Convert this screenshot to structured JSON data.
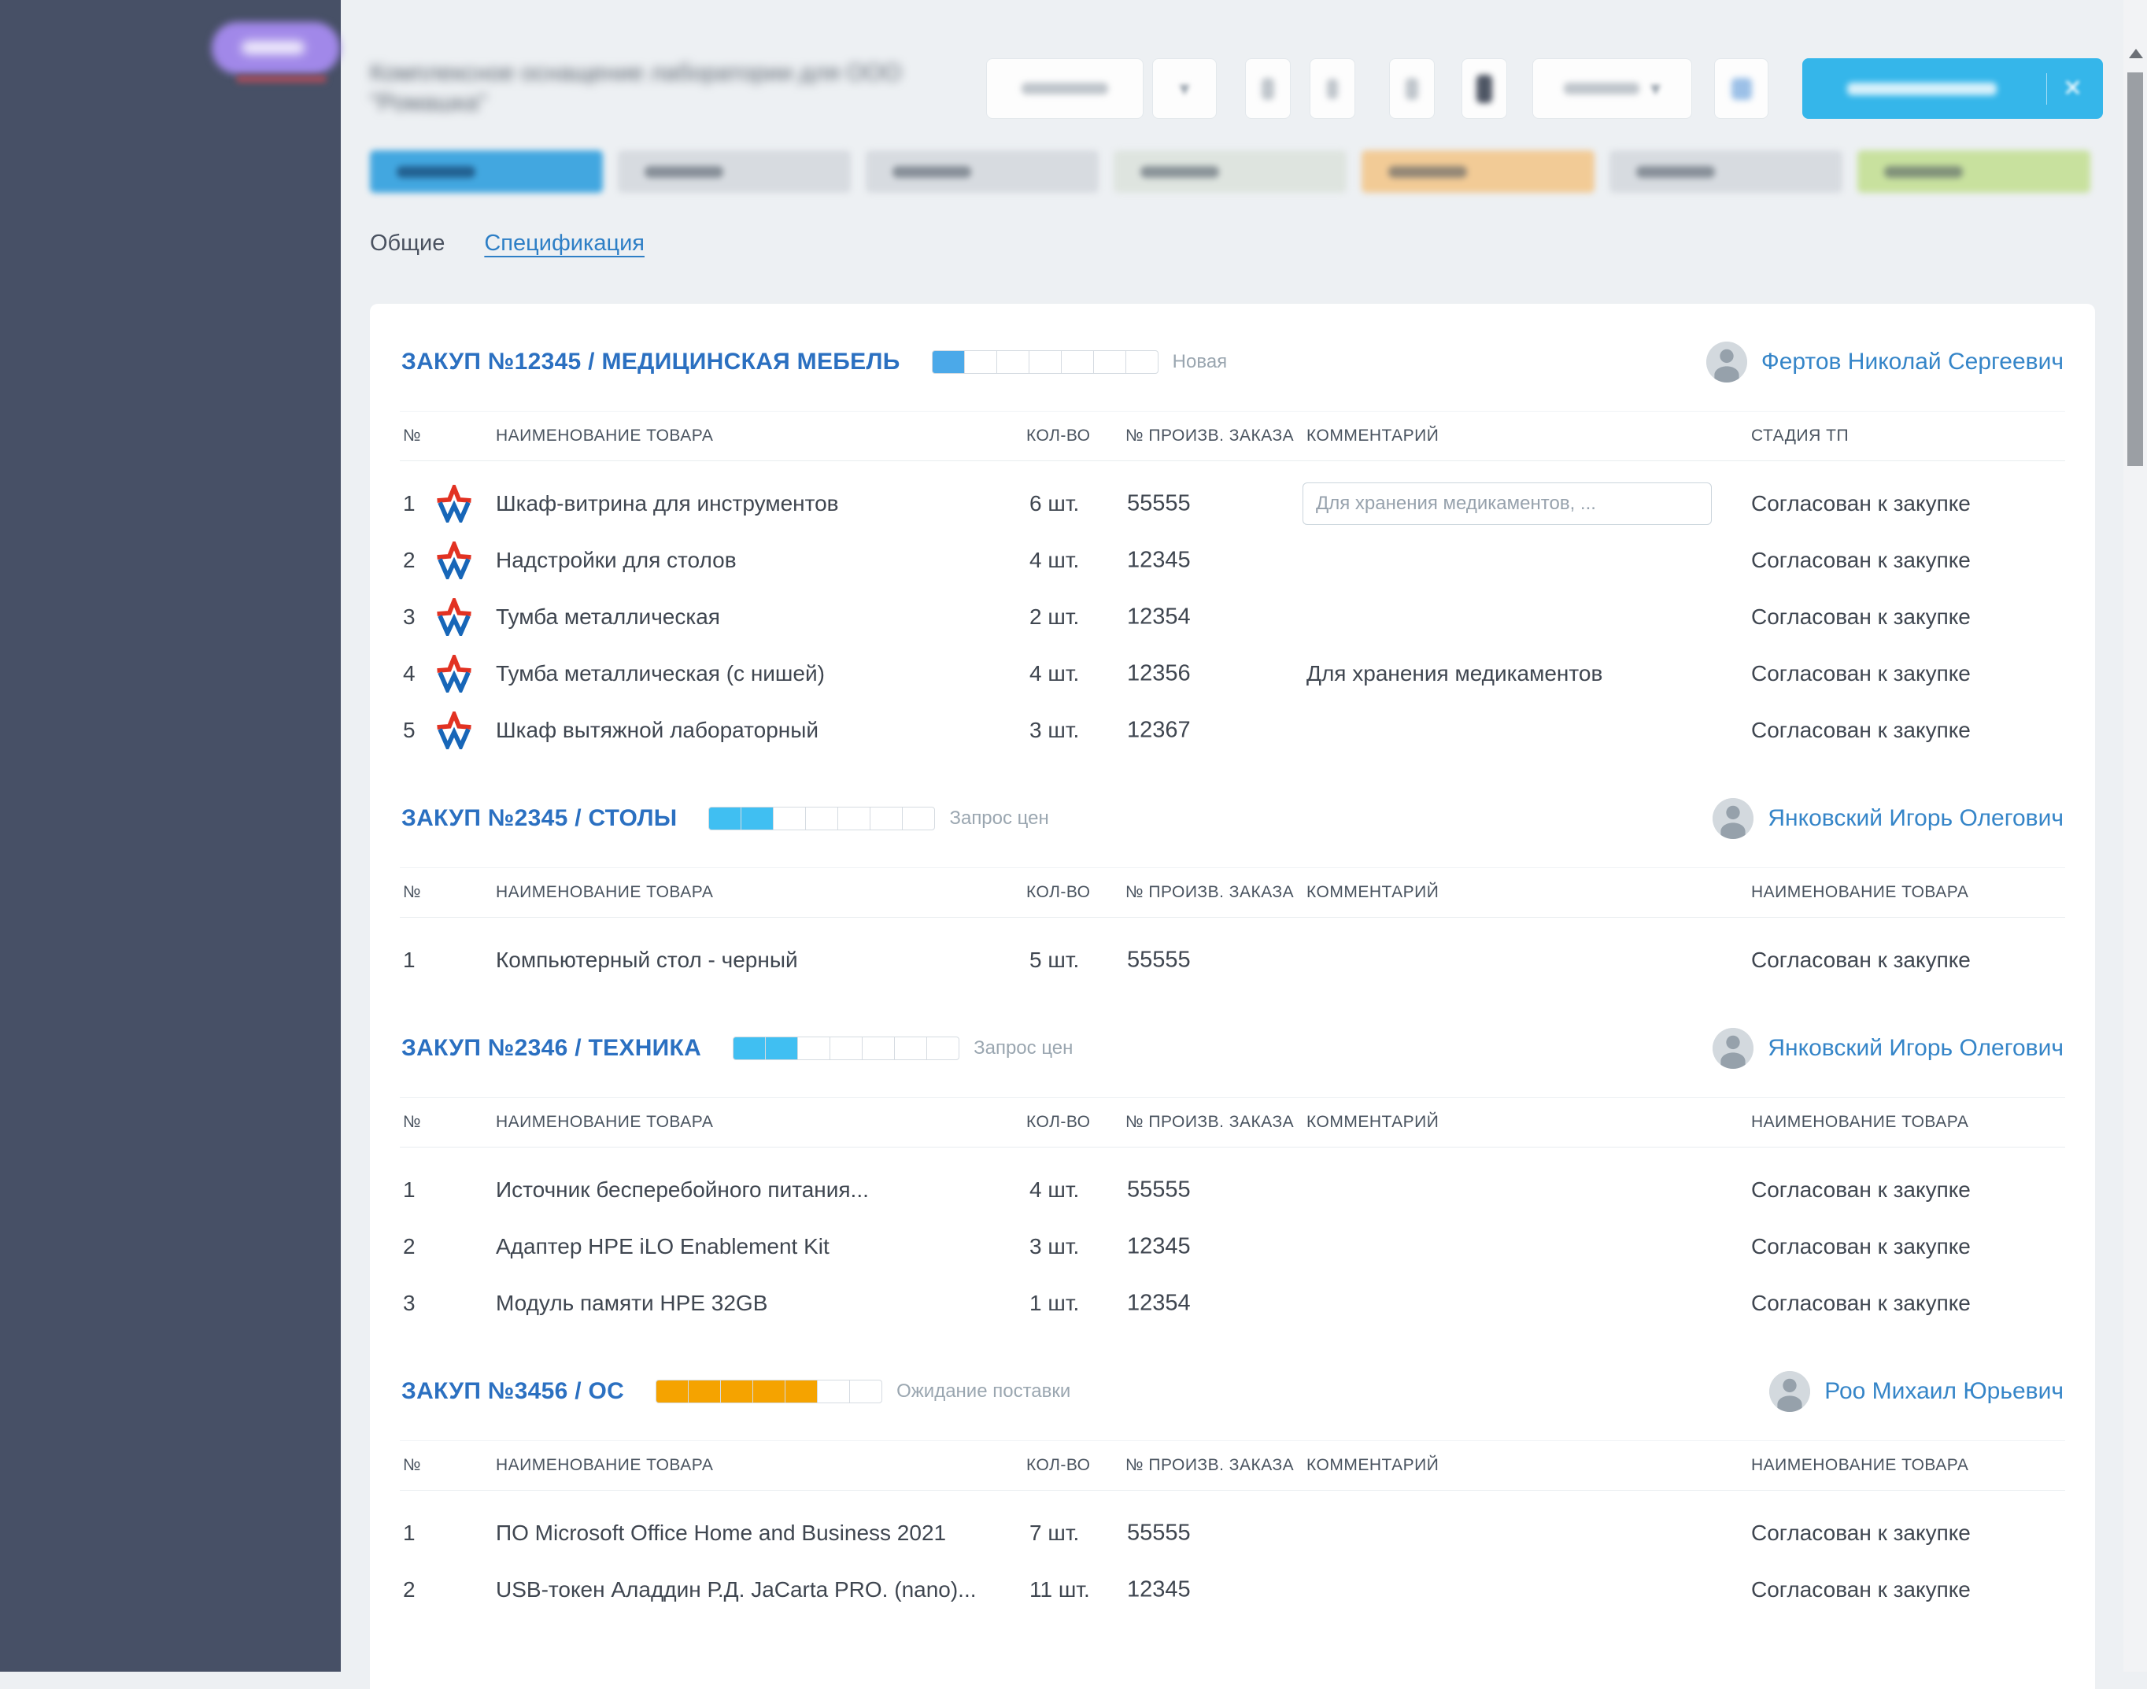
{
  "header": {
    "title": "Комплексное оснащение лаборатории для ООО \"Ромашка\"",
    "primary_button_color": "#35b6ea",
    "controls_redacted": true
  },
  "sidebar": {
    "accent_pill_color": "#a188e9"
  },
  "stage_chips": [
    {
      "active": true,
      "tint": "#42a7e0",
      "redacted": true
    },
    {
      "active": false,
      "tint": "#d7dbe0",
      "redacted": true
    },
    {
      "active": false,
      "tint": "#d7dbe0",
      "redacted": true
    },
    {
      "active": false,
      "tint": "#dee4df",
      "redacted": true
    },
    {
      "active": false,
      "tint": "#f2cb96",
      "redacted": true
    },
    {
      "active": false,
      "tint": "#d7dbe0",
      "redacted": true
    },
    {
      "active": false,
      "tint": "#c8e19e",
      "redacted": true
    }
  ],
  "tabs": [
    {
      "label": "Общие",
      "active": false
    },
    {
      "label": "Спецификация",
      "active": true
    }
  ],
  "sections": [
    {
      "title": "ЗАКУП №12345 / МЕДИЦИНСКАЯ МЕБЕЛЬ",
      "progress": {
        "segments": 7,
        "filled": 1,
        "color": "#4ba9e9"
      },
      "status": "Новая",
      "owner": "Фертов Николай Сергеевич",
      "columns": [
        "№",
        "НАИМЕНОВАНИЕ ТОВАРА",
        "КОЛ-ВО",
        "№ ПРОИЗВ. ЗАКАЗА",
        "КОММЕНТАРИЙ",
        "СТАДИЯ ТП"
      ],
      "rows": [
        {
          "num": "1",
          "star": true,
          "name": "Шкаф-витрина для инструментов",
          "qty": "6 шт.",
          "order": "55555",
          "comment_input": "Для хранения медикаментов, ...",
          "stage": "Согласован к закупке"
        },
        {
          "num": "2",
          "star": true,
          "name": "Надстройки для столов",
          "qty": "4 шт.",
          "order": "12345",
          "stage": "Согласован к закупке"
        },
        {
          "num": "3",
          "star": true,
          "name": "Тумба металлическая",
          "qty": "2 шт.",
          "order": "12354",
          "stage": "Согласован к закупке"
        },
        {
          "num": "4",
          "star": true,
          "name": "Тумба металлическая (с нишей)",
          "qty": "4 шт.",
          "order": "12356",
          "comment": "Для хранения медикаментов",
          "stage": "Согласован к закупке"
        },
        {
          "num": "5",
          "star": true,
          "name": "Шкаф вытяжной лабораторный",
          "qty": "3 шт.",
          "order": "12367",
          "stage": "Согласован к закупке"
        }
      ]
    },
    {
      "title": "ЗАКУП №2345 / СТОЛЫ",
      "progress": {
        "segments": 7,
        "filled": 2,
        "color": "#40bff2"
      },
      "status": "Запрос цен",
      "owner": "Янковский Игорь Олегович",
      "columns": [
        "№",
        "НАИМЕНОВАНИЕ ТОВАРА",
        "КОЛ-ВО",
        "№ ПРОИЗВ. ЗАКАЗА",
        "КОММЕНТАРИЙ",
        "НАИМЕНОВАНИЕ ТОВАРА"
      ],
      "rows": [
        {
          "num": "1",
          "star": false,
          "name": "Компьютерный стол - черный",
          "qty": "5 шт.",
          "order": "55555",
          "stage": "Согласован к закупке"
        }
      ]
    },
    {
      "title": "ЗАКУП №2346 / ТЕХНИКА",
      "progress": {
        "segments": 7,
        "filled": 2,
        "color": "#40bff2"
      },
      "status": "Запрос цен",
      "owner": "Янковский Игорь Олегович",
      "columns": [
        "№",
        "НАИМЕНОВАНИЕ ТОВАРА",
        "КОЛ-ВО",
        "№ ПРОИЗВ. ЗАКАЗА",
        "КОММЕНТАРИЙ",
        "НАИМЕНОВАНИЕ ТОВАРА"
      ],
      "rows": [
        {
          "num": "1",
          "star": false,
          "name": "Источник бесперебойного питания...",
          "qty": "4 шт.",
          "order": "55555",
          "stage": "Согласован к закупке"
        },
        {
          "num": "2",
          "star": false,
          "name": "Адаптер HPE iLO Enablement Kit",
          "qty": "3 шт.",
          "order": "12345",
          "stage": "Согласован к закупке"
        },
        {
          "num": "3",
          "star": false,
          "name": "Модуль памяти HPE 32GB",
          "qty": "1 шт.",
          "order": "12354",
          "stage": "Согласован к закупке"
        }
      ]
    },
    {
      "title": "ЗАКУП №3456 / ОС",
      "progress": {
        "segments": 7,
        "filled": 5,
        "color": "#f5a300"
      },
      "status": "Ожидание поставки",
      "owner": "Роо Михаил Юрьевич",
      "columns": [
        "№",
        "НАИМЕНОВАНИЕ ТОВАРА",
        "КОЛ-ВО",
        "№ ПРОИЗВ. ЗАКАЗА",
        "КОММЕНТАРИЙ",
        "НАИМЕНОВАНИЕ ТОВАРА"
      ],
      "rows": [
        {
          "num": "1",
          "star": false,
          "name": "ПО Microsoft Office Home and Business 2021",
          "qty": "7 шт.",
          "order": "55555",
          "stage": "Согласован к закупке"
        },
        {
          "num": "2",
          "star": false,
          "name": "USB-токен Аладдин Р.Д. JaCarta PRO. (nano)...",
          "qty": "11 шт.",
          "order": "12345",
          "stage": "Согласован к закупке"
        }
      ]
    }
  ]
}
